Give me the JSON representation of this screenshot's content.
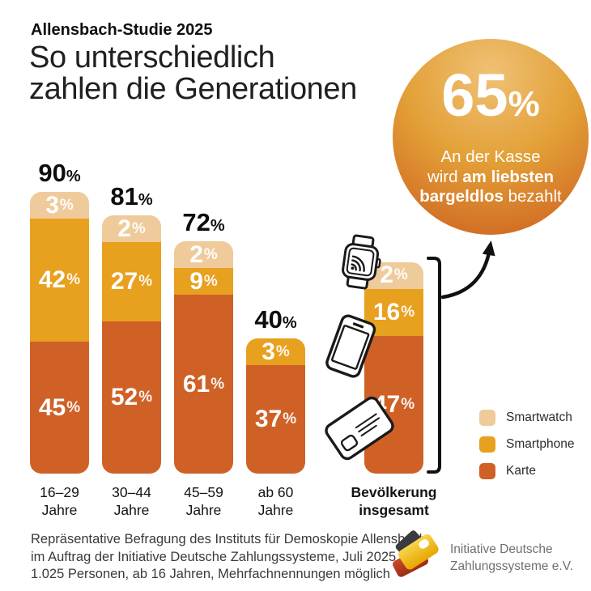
{
  "header": {
    "kicker": "Allensbach-Studie 2025",
    "title_line1": "So unterschiedlich",
    "title_line2": "zahlen die Generationen"
  },
  "highlight_circle": {
    "value": "65",
    "percent_sign": "%",
    "caption_lines": [
      [
        {
          "text": "An der Kasse",
          "bold": false
        }
      ],
      [
        {
          "text": "wird ",
          "bold": false
        },
        {
          "text": "am liebsten",
          "bold": true
        }
      ],
      [
        {
          "text": "bargeldlos",
          "bold": true
        },
        {
          "text": " bezahlt",
          "bold": false
        }
      ]
    ]
  },
  "chart_data": {
    "type": "bar",
    "subtype": "stacked-vertical",
    "unit": "%",
    "value_suffix": "%",
    "categories": [
      {
        "label_lines": [
          "16–29",
          "Jahre"
        ],
        "bold": false,
        "total": 90,
        "show_total": true
      },
      {
        "label_lines": [
          "30–44",
          "Jahre"
        ],
        "bold": false,
        "total": 81,
        "show_total": true
      },
      {
        "label_lines": [
          "45–59",
          "Jahre"
        ],
        "bold": false,
        "total": 72,
        "show_total": true
      },
      {
        "label_lines": [
          "ab 60",
          "Jahre"
        ],
        "bold": false,
        "total": 40,
        "show_total": true
      },
      {
        "label_lines": [
          "Bevölkerung",
          "insgesamt"
        ],
        "bold": true,
        "total": 65,
        "show_total": false
      }
    ],
    "series": [
      {
        "name": "Smartwatch",
        "color": "#EFCB9B",
        "values": [
          3,
          2,
          2,
          0,
          2
        ]
      },
      {
        "name": "Smartphone",
        "color": "#E8A01F",
        "values": [
          42,
          27,
          9,
          3,
          16
        ]
      },
      {
        "name": "Karte",
        "color": "#CF6127",
        "values": [
          45,
          52,
          61,
          37,
          47
        ]
      }
    ],
    "legend_position": "right",
    "grid": false,
    "note": "Bevölkerung insgesamt total (65%) is shown in the highlight circle, not above the bar"
  },
  "legend": {
    "items": [
      {
        "label": "Smartwatch",
        "color": "#EFCB9B"
      },
      {
        "label": "Smartphone",
        "color": "#E8A01F"
      },
      {
        "label": "Karte",
        "color": "#CF6127"
      }
    ]
  },
  "icons": {
    "smartwatch": "smartwatch-icon",
    "smartphone": "smartphone-icon",
    "credit_card": "credit-card-icon",
    "arrow": "arrow-to-circle",
    "bracket": "bracket"
  },
  "footnote": {
    "lines": [
      "Repräsentative Befragung des Instituts für Demoskopie Allensbach",
      "im Auftrag der Initiative Deutsche Zahlungssysteme, Juli 2025,",
      "1.025 Personen, ab 16 Jahren, Mehrfachnennungen möglich"
    ]
  },
  "logo": {
    "line1": "Initiative Deutsche",
    "line2": "Zahlungssysteme e.V."
  },
  "colors": {
    "smartwatch": "#EFCB9B",
    "smartphone": "#E8A01F",
    "karte": "#CF6127",
    "circle_gradient_top": "#EFC176",
    "circle_gradient_bottom": "#CC5D1E",
    "text": "#141414"
  }
}
